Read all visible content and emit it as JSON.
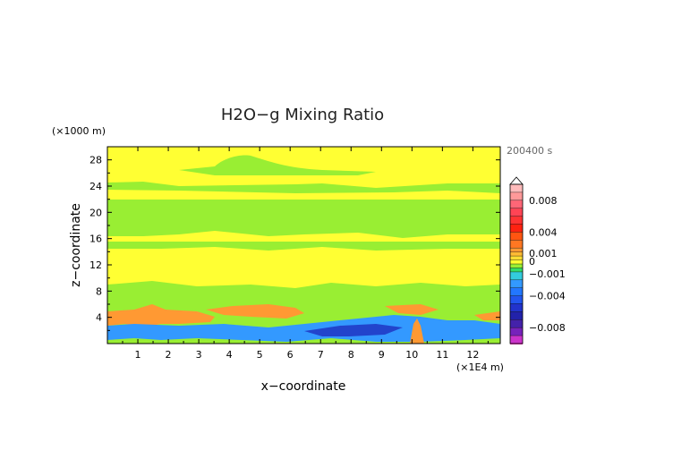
{
  "chart_data": {
    "type": "heatmap",
    "title": "H2O−g Mixing Ratio",
    "xlabel": "x−coordinate",
    "ylabel": "z−coordinate",
    "x_unit": "(×1E4 m)",
    "y_unit": "(×1000 m)",
    "time_label": "200400 s",
    "xlim": [
      0,
      12.9
    ],
    "ylim": [
      0,
      30
    ],
    "x_ticks": [
      "1",
      "2",
      "3",
      "4",
      "5",
      "6",
      "7",
      "8",
      "9",
      "10",
      "11",
      "12"
    ],
    "y_ticks": [
      "4",
      "8",
      "12",
      "16",
      "20",
      "24",
      "28"
    ],
    "colorbar": {
      "labels": [
        "0.008",
        "0.004",
        "0.001",
        "0",
        "−0.001",
        "−0.004",
        "−0.008"
      ],
      "label_values": [
        0.008,
        0.004,
        0.001,
        0,
        -0.001,
        -0.004,
        -0.008
      ],
      "range": [
        -0.01,
        0.01
      ]
    },
    "regions": [
      {
        "level": "near-zero positive",
        "color": "#ffff33",
        "z_range": [
          0,
          30
        ],
        "note": "background"
      },
      {
        "level": "slightly positive",
        "color": "#99ee33",
        "z_range": [
          4.5,
          28
        ]
      },
      {
        "level": "positive",
        "color": "#ff9933",
        "z_range": [
          3,
          6
        ]
      },
      {
        "level": "negative",
        "color": "#3399ff",
        "z_range": [
          0,
          3.5
        ]
      },
      {
        "level": "strongly negative",
        "color": "#2244cc",
        "z_range": [
          0.5,
          3
        ]
      }
    ]
  },
  "colors": {
    "background_field": "#ffff33",
    "light_green": "#99ee33",
    "orange": "#ff9933",
    "blue": "#3399ff",
    "dark_blue": "#2244cc"
  }
}
